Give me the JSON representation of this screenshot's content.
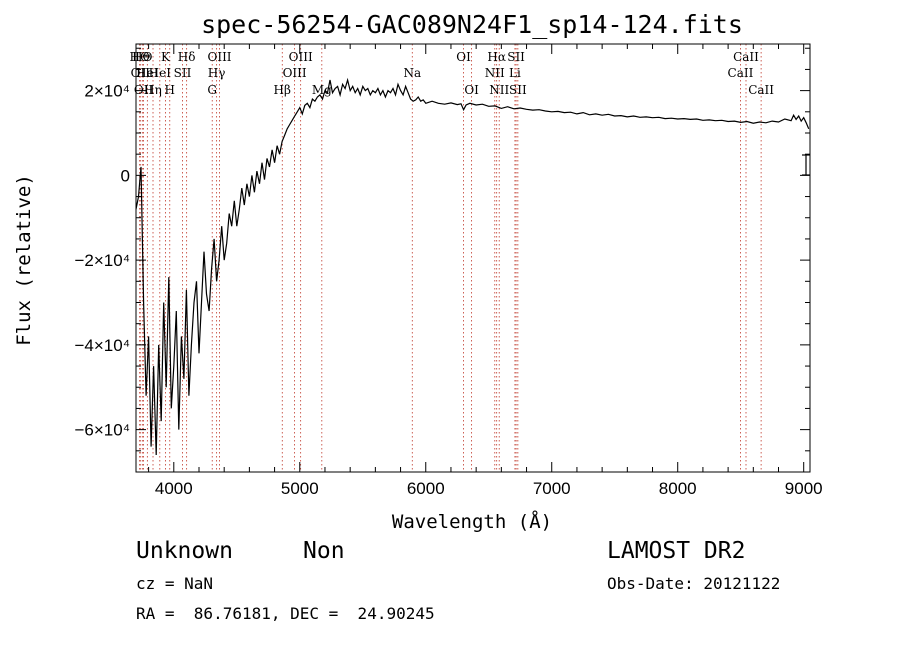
{
  "chart_data": {
    "type": "line",
    "title": "spec-56254-GAC089N24F1_sp14-124.fits",
    "xlabel": "Wavelength (Å)",
    "ylabel": "Flux (relative)",
    "xlim": [
      3700,
      9050
    ],
    "ylim": [
      -70000,
      31000
    ],
    "xticks": [
      {
        "v": 4000,
        "label": "4000"
      },
      {
        "v": 5000,
        "label": "5000"
      },
      {
        "v": 6000,
        "label": "6000"
      },
      {
        "v": 7000,
        "label": "7000"
      },
      {
        "v": 8000,
        "label": "8000"
      },
      {
        "v": 9000,
        "label": "9000"
      }
    ],
    "yticks": [
      {
        "v": 20000,
        "label": "2×10⁴"
      },
      {
        "v": 0,
        "label": "0"
      },
      {
        "v": -20000,
        "label": "−2×10⁴"
      },
      {
        "v": -40000,
        "label": "−4×10⁴"
      },
      {
        "v": -60000,
        "label": "−6×10⁴"
      }
    ],
    "series": [
      {
        "values": [
          [
            3700,
            -8000
          ],
          [
            3720,
            -5000
          ],
          [
            3740,
            2000
          ],
          [
            3760,
            -30000
          ],
          [
            3780,
            -52000
          ],
          [
            3800,
            -38000
          ],
          [
            3820,
            -64000
          ],
          [
            3840,
            -45000
          ],
          [
            3860,
            -66000
          ],
          [
            3880,
            -40000
          ],
          [
            3900,
            -58000
          ],
          [
            3920,
            -30000
          ],
          [
            3940,
            -50000
          ],
          [
            3960,
            -24000
          ],
          [
            3980,
            -55000
          ],
          [
            4000,
            -45000
          ],
          [
            4020,
            -32000
          ],
          [
            4040,
            -60000
          ],
          [
            4060,
            -38000
          ],
          [
            4080,
            -48000
          ],
          [
            4100,
            -27000
          ],
          [
            4120,
            -52000
          ],
          [
            4140,
            -40000
          ],
          [
            4160,
            -30000
          ],
          [
            4180,
            -25000
          ],
          [
            4200,
            -42000
          ],
          [
            4220,
            -30000
          ],
          [
            4240,
            -18000
          ],
          [
            4260,
            -28000
          ],
          [
            4280,
            -32000
          ],
          [
            4300,
            -22000
          ],
          [
            4320,
            -15000
          ],
          [
            4340,
            -25000
          ],
          [
            4360,
            -20000
          ],
          [
            4380,
            -12000
          ],
          [
            4400,
            -20000
          ],
          [
            4420,
            -16000
          ],
          [
            4440,
            -9000
          ],
          [
            4460,
            -12000
          ],
          [
            4480,
            -6000
          ],
          [
            4500,
            -12000
          ],
          [
            4520,
            -8000
          ],
          [
            4540,
            -3000
          ],
          [
            4560,
            -7000
          ],
          [
            4580,
            -2000
          ],
          [
            4600,
            -5000
          ],
          [
            4620,
            0
          ],
          [
            4640,
            -4000
          ],
          [
            4660,
            1000
          ],
          [
            4680,
            -2000
          ],
          [
            4700,
            3000
          ],
          [
            4720,
            -1000
          ],
          [
            4740,
            4000
          ],
          [
            4760,
            2000
          ],
          [
            4780,
            6000
          ],
          [
            4800,
            3000
          ],
          [
            4820,
            7000
          ],
          [
            4840,
            5000
          ],
          [
            4860,
            8000
          ],
          [
            4880,
            9500
          ],
          [
            4900,
            11000
          ],
          [
            4920,
            12000
          ],
          [
            4940,
            13000
          ],
          [
            4960,
            14000
          ],
          [
            4980,
            15000
          ],
          [
            5000,
            16000
          ],
          [
            5020,
            14500
          ],
          [
            5040,
            16500
          ],
          [
            5060,
            17000
          ],
          [
            5080,
            16000
          ],
          [
            5100,
            18000
          ],
          [
            5120,
            17500
          ],
          [
            5140,
            18500
          ],
          [
            5160,
            19000
          ],
          [
            5180,
            18000
          ],
          [
            5200,
            20000
          ],
          [
            5220,
            19500
          ],
          [
            5240,
            22500
          ],
          [
            5260,
            19500
          ],
          [
            5280,
            20500
          ],
          [
            5300,
            21000
          ],
          [
            5320,
            19000
          ],
          [
            5340,
            21500
          ],
          [
            5360,
            20500
          ],
          [
            5380,
            22500
          ],
          [
            5400,
            20000
          ],
          [
            5420,
            21000
          ],
          [
            5440,
            19500
          ],
          [
            5460,
            20500
          ],
          [
            5480,
            19000
          ],
          [
            5500,
            21000
          ],
          [
            5520,
            20000
          ],
          [
            5540,
            20500
          ],
          [
            5560,
            19000
          ],
          [
            5580,
            20000
          ],
          [
            5600,
            19500
          ],
          [
            5620,
            20500
          ],
          [
            5640,
            19000
          ],
          [
            5660,
            20000
          ],
          [
            5680,
            18500
          ],
          [
            5700,
            20000
          ],
          [
            5720,
            19500
          ],
          [
            5740,
            20500
          ],
          [
            5760,
            19000
          ],
          [
            5780,
            21500
          ],
          [
            5800,
            20000
          ],
          [
            5820,
            19000
          ],
          [
            5840,
            21000
          ],
          [
            5860,
            19500
          ],
          [
            5880,
            18000
          ],
          [
            5900,
            17500
          ],
          [
            5920,
            17800
          ],
          [
            5940,
            18500
          ],
          [
            5960,
            17500
          ],
          [
            5980,
            17800
          ],
          [
            6000,
            17000
          ],
          [
            6050,
            17500
          ],
          [
            6100,
            17000
          ],
          [
            6150,
            16800
          ],
          [
            6200,
            17100
          ],
          [
            6250,
            16700
          ],
          [
            6280,
            16900
          ],
          [
            6300,
            15500
          ],
          [
            6320,
            16600
          ],
          [
            6350,
            17000
          ],
          [
            6400,
            16600
          ],
          [
            6450,
            16800
          ],
          [
            6500,
            16300
          ],
          [
            6550,
            16400
          ],
          [
            6600,
            15800
          ],
          [
            6650,
            16200
          ],
          [
            6700,
            15700
          ],
          [
            6750,
            15900
          ],
          [
            6800,
            15600
          ],
          [
            6850,
            15400
          ],
          [
            6900,
            15500
          ],
          [
            6950,
            15200
          ],
          [
            7000,
            15000
          ],
          [
            7050,
            15100
          ],
          [
            7100,
            14800
          ],
          [
            7150,
            14900
          ],
          [
            7200,
            14500
          ],
          [
            7250,
            14800
          ],
          [
            7300,
            14300
          ],
          [
            7350,
            14500
          ],
          [
            7400,
            14200
          ],
          [
            7450,
            14400
          ],
          [
            7500,
            14000
          ],
          [
            7550,
            14100
          ],
          [
            7600,
            13800
          ],
          [
            7650,
            14000
          ],
          [
            7700,
            13700
          ],
          [
            7750,
            13800
          ],
          [
            7800,
            13600
          ],
          [
            7850,
            13700
          ],
          [
            7900,
            13400
          ],
          [
            7950,
            13500
          ],
          [
            8000,
            13300
          ],
          [
            8050,
            13400
          ],
          [
            8100,
            13200
          ],
          [
            8150,
            13300
          ],
          [
            8200,
            13000
          ],
          [
            8250,
            13100
          ],
          [
            8300,
            12900
          ],
          [
            8350,
            13000
          ],
          [
            8400,
            12700
          ],
          [
            8450,
            12800
          ],
          [
            8500,
            12500
          ],
          [
            8550,
            12700
          ],
          [
            8600,
            12300
          ],
          [
            8650,
            12600
          ],
          [
            8700,
            12400
          ],
          [
            8750,
            12800
          ],
          [
            8800,
            12600
          ],
          [
            8850,
            13300
          ],
          [
            8900,
            12900
          ],
          [
            8920,
            14200
          ],
          [
            8940,
            13200
          ],
          [
            8960,
            14000
          ],
          [
            8980,
            12800
          ],
          [
            9000,
            13600
          ],
          [
            9020,
            12400
          ],
          [
            9040,
            11000
          ]
        ]
      }
    ],
    "lines": [
      {
        "label": "HΘ",
        "w": 3729,
        "row": 0
      },
      {
        "label": "OII",
        "w": 3734,
        "row": 1
      },
      {
        "label": "HΘ",
        "w": 3750,
        "row": 0
      },
      {
        "label": "OII",
        "w": 3760,
        "row": 2
      },
      {
        "label": "HeI",
        "w": 3790,
        "row": 1
      },
      {
        "label": "Hη",
        "w": 3835,
        "row": 2
      },
      {
        "label": "K",
        "w": 3934,
        "row": 0
      },
      {
        "label": "HeI",
        "w": 3889,
        "row": 1
      },
      {
        "label": "SII",
        "w": 4069,
        "row": 1
      },
      {
        "label": "H",
        "w": 3968,
        "row": 2
      },
      {
        "label": "Hδ",
        "w": 4102,
        "row": 0
      },
      {
        "label": "OIII",
        "w": 4363,
        "row": 0
      },
      {
        "label": "Hγ",
        "w": 4340,
        "row": 1
      },
      {
        "label": "G",
        "w": 4305,
        "row": 2
      },
      {
        "label": "Hβ",
        "w": 4861,
        "row": 2
      },
      {
        "label": "OIII",
        "w": 5007,
        "row": 0
      },
      {
        "label": "OIII",
        "w": 4959,
        "row": 1
      },
      {
        "label": "Mg",
        "w": 5175,
        "row": 2
      },
      {
        "label": "Na",
        "w": 5893,
        "row": 1
      },
      {
        "label": "OI",
        "w": 6300,
        "row": 0
      },
      {
        "label": "OI",
        "w": 6364,
        "row": 2
      },
      {
        "label": "Hα",
        "w": 6563,
        "row": 0
      },
      {
        "label": "NII",
        "w": 6548,
        "row": 1
      },
      {
        "label": "NII",
        "w": 6583,
        "row": 2
      },
      {
        "label": "SII",
        "w": 6717,
        "row": 0
      },
      {
        "label": "Li",
        "w": 6708,
        "row": 1
      },
      {
        "label": "SII",
        "w": 6731,
        "row": 2
      },
      {
        "label": "CaII",
        "w": 8542,
        "row": 0
      },
      {
        "label": "CaII",
        "w": 8498,
        "row": 1
      },
      {
        "label": "CaII",
        "w": 8662,
        "row": 2
      }
    ]
  },
  "info": {
    "object_class": "Unknown",
    "subclass": "Non",
    "survey": "LAMOST DR2",
    "cz": "cz = NaN",
    "obs_date": "Obs-Date: 20121122",
    "coords": "RA =  86.76181, DEC =  24.90245"
  }
}
